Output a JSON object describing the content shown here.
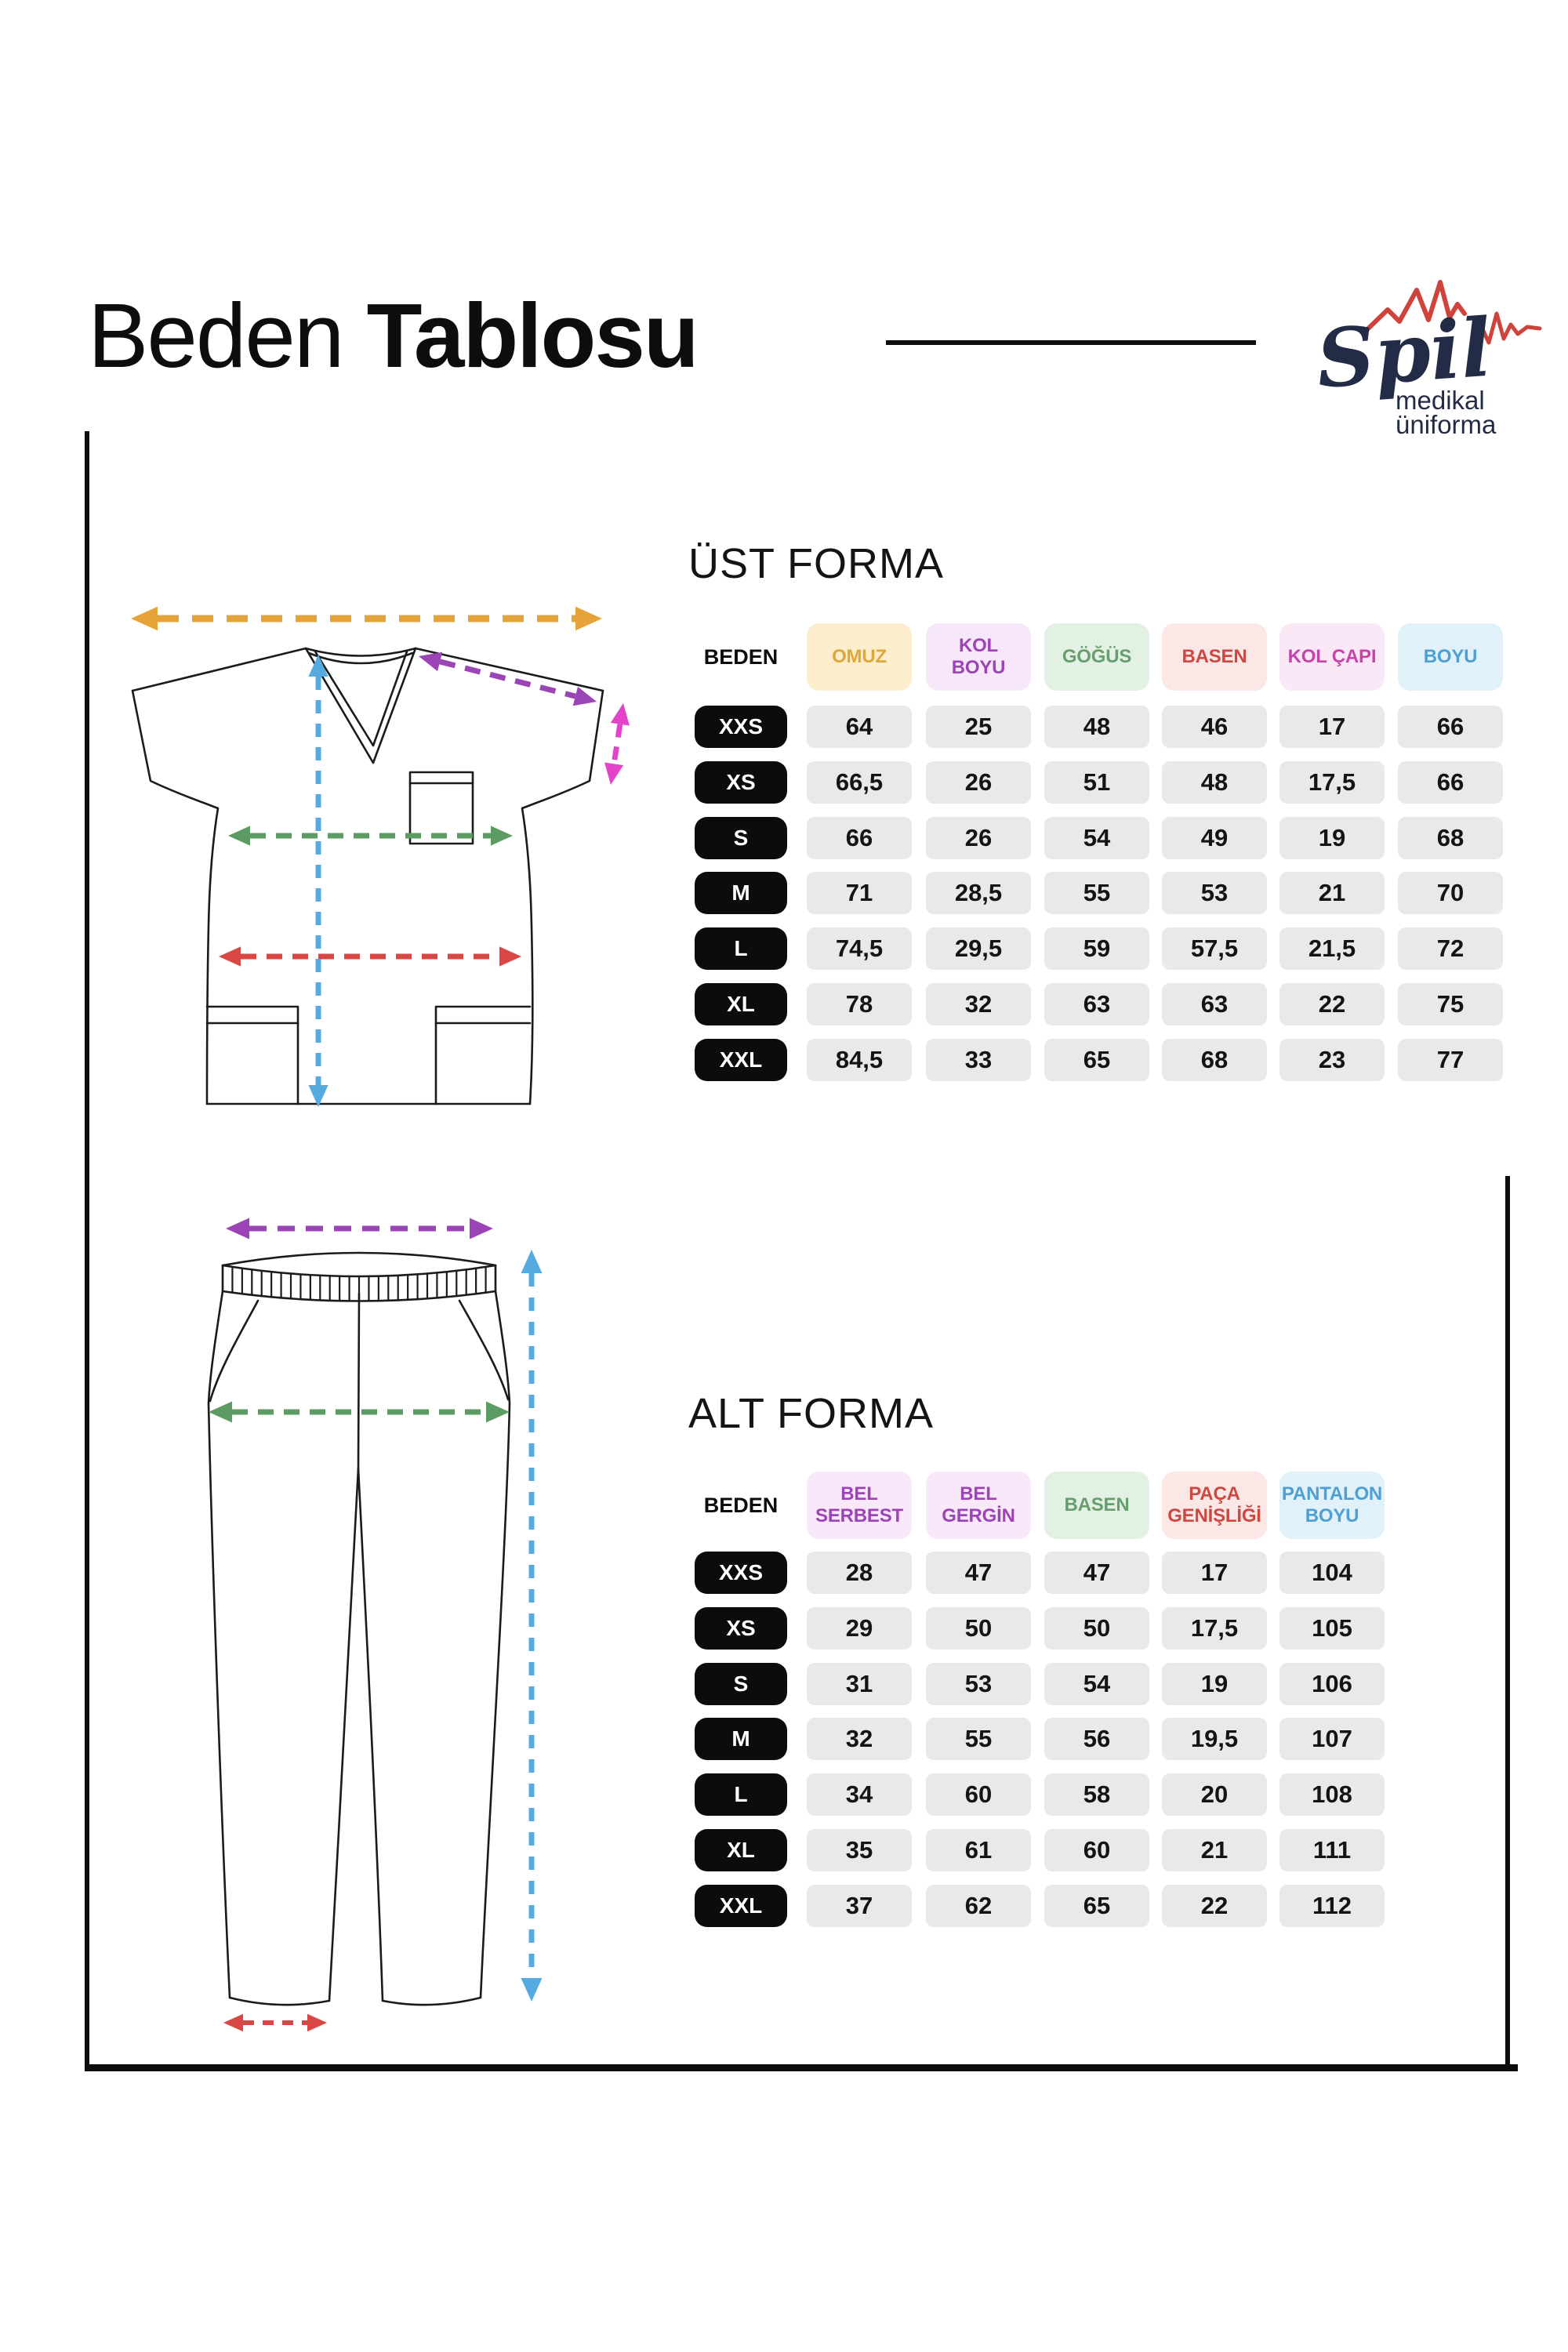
{
  "header": {
    "title_regular": "Beden",
    "title_bold": "Tablosu"
  },
  "logo": {
    "brand": "Spil",
    "sub1": "medikal",
    "sub2": "üniforma",
    "brand_color": "#232c47",
    "pulse_color": "#d0433c"
  },
  "palette": {
    "ink": "#0d0d0d",
    "badge_bg": "#0c0c0c",
    "badge_text": "#ffffff",
    "cell_bg": "#e8e9eb",
    "cell_text": "#141414",
    "arrow_yellow": "#e6a438",
    "arrow_purple": "#9b44b5",
    "arrow_magenta": "#e243c8",
    "arrow_blue": "#55aadf",
    "arrow_green": "#5c9b63",
    "arrow_red": "#d84743"
  },
  "top_table": {
    "title": "ÜST FORMA",
    "size_header": "BEDEN",
    "columns": [
      {
        "label": "OMUZ",
        "fg": "#e0a637",
        "bg": "#fcedcd"
      },
      {
        "label": "KOL\nBOYU",
        "fg": "#9c44b6",
        "bg": "#f7e7fb"
      },
      {
        "label": "GÖĞÜS",
        "fg": "#679e6e",
        "bg": "#e3f1e4"
      },
      {
        "label": "BASEN",
        "fg": "#cc4841",
        "bg": "#fbe7e5"
      },
      {
        "label": "KOL ÇAPI",
        "fg": "#c643ae",
        "bg": "#fbe8f7"
      },
      {
        "label": "BOYU",
        "fg": "#4e9fd4",
        "bg": "#e1f1fa"
      }
    ],
    "rows": [
      {
        "size": "XXS",
        "values": [
          "64",
          "25",
          "48",
          "46",
          "17",
          "66"
        ]
      },
      {
        "size": "XS",
        "values": [
          "66,5",
          "26",
          "51",
          "48",
          "17,5",
          "66"
        ]
      },
      {
        "size": "S",
        "values": [
          "66",
          "26",
          "54",
          "49",
          "19",
          "68"
        ]
      },
      {
        "size": "M",
        "values": [
          "71",
          "28,5",
          "55",
          "53",
          "21",
          "70"
        ]
      },
      {
        "size": "L",
        "values": [
          "74,5",
          "29,5",
          "59",
          "57,5",
          "21,5",
          "72"
        ]
      },
      {
        "size": "XL",
        "values": [
          "78",
          "32",
          "63",
          "63",
          "22",
          "75"
        ]
      },
      {
        "size": "XXL",
        "values": [
          "84,5",
          "33",
          "65",
          "68",
          "23",
          "77"
        ]
      }
    ]
  },
  "bottom_table": {
    "title": "ALT FORMA",
    "size_header": "BEDEN",
    "columns": [
      {
        "label": "BEL\nSERBEST",
        "fg": "#9c44b6",
        "bg": "#f9e8f9"
      },
      {
        "label": "BEL\nGERGİN",
        "fg": "#9c44b6",
        "bg": "#f9e8f9"
      },
      {
        "label": "BASEN",
        "fg": "#679e6e",
        "bg": "#e3f1e4"
      },
      {
        "label": "PAÇA\nGENİŞLİĞİ",
        "fg": "#cc4841",
        "bg": "#fbe7e5"
      },
      {
        "label": "PANTALON\nBOYU",
        "fg": "#4e9fd4",
        "bg": "#e1f1fa"
      }
    ],
    "rows": [
      {
        "size": "XXS",
        "values": [
          "28",
          "47",
          "47",
          "17",
          "104"
        ]
      },
      {
        "size": "XS",
        "values": [
          "29",
          "50",
          "50",
          "17,5",
          "105"
        ]
      },
      {
        "size": "S",
        "values": [
          "31",
          "53",
          "54",
          "19",
          "106"
        ]
      },
      {
        "size": "M",
        "values": [
          "32",
          "55",
          "56",
          "19,5",
          "107"
        ]
      },
      {
        "size": "L",
        "values": [
          "34",
          "60",
          "58",
          "20",
          "108"
        ]
      },
      {
        "size": "XL",
        "values": [
          "35",
          "61",
          "60",
          "21",
          "111"
        ]
      },
      {
        "size": "XXL",
        "values": [
          "37",
          "62",
          "65",
          "22",
          "112"
        ]
      }
    ]
  },
  "diagrams": {
    "top_garment": {
      "arrows": [
        {
          "name": "omuz-arrow",
          "color_key": "arrow_yellow"
        },
        {
          "name": "kol-boyu-arrow",
          "color_key": "arrow_purple"
        },
        {
          "name": "kol-capi-arrow",
          "color_key": "arrow_magenta"
        },
        {
          "name": "gogus-arrow",
          "color_key": "arrow_green"
        },
        {
          "name": "basen-arrow",
          "color_key": "arrow_red"
        },
        {
          "name": "boyu-arrow",
          "color_key": "arrow_blue"
        }
      ]
    },
    "bottom_garment": {
      "arrows": [
        {
          "name": "bel-arrow",
          "color_key": "arrow_purple"
        },
        {
          "name": "basen-arrow",
          "color_key": "arrow_green"
        },
        {
          "name": "pantolon-boyu-arrow",
          "color_key": "arrow_blue"
        },
        {
          "name": "paca-genisligi-arrow",
          "color_key": "arrow_red"
        }
      ]
    }
  }
}
